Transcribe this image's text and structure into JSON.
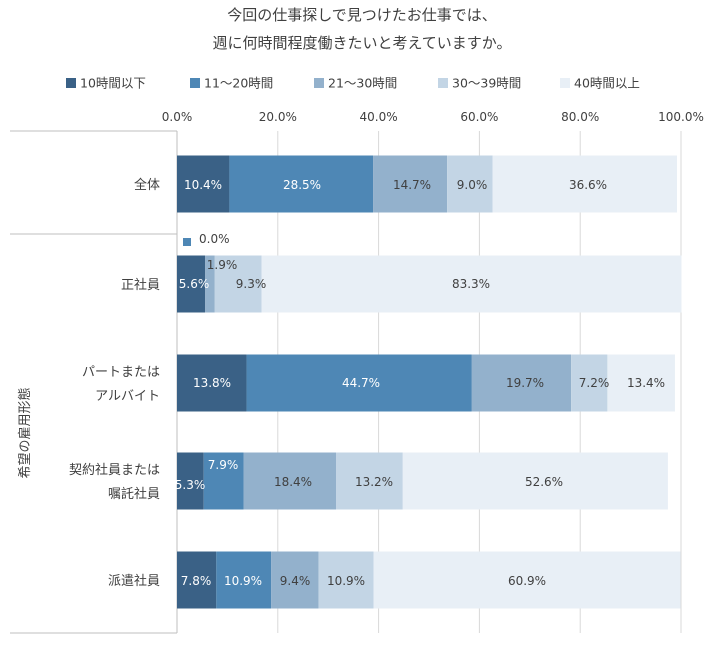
{
  "chart_data": {
    "type": "bar",
    "orientation": "horizontal",
    "stacked": true,
    "title": [
      "今回の仕事探しで見つけたお仕事では、",
      "週に何時間程度働きたいと考えていますか。"
    ],
    "ylabel": "希望の雇用形態",
    "xlim": [
      0,
      100
    ],
    "x_ticks": [
      "0.0%",
      "20.0%",
      "40.0%",
      "60.0%",
      "80.0%",
      "100.0%"
    ],
    "legend_position": "top",
    "grid": true,
    "categories": [
      [
        "全体"
      ],
      [
        "正社員"
      ],
      [
        "パートまたは",
        "アルバイト"
      ],
      [
        "契約社員または",
        "嘱託社員"
      ],
      [
        "派遣社員"
      ]
    ],
    "series": [
      {
        "name": "10時間以下",
        "color": "#3a6186",
        "values": [
          10.4,
          5.6,
          13.8,
          5.3,
          7.8
        ]
      },
      {
        "name": "11～20時間",
        "color": "#4e87b5",
        "values": [
          28.5,
          0.0,
          44.7,
          7.9,
          10.9
        ]
      },
      {
        "name": "21～30時間",
        "color": "#93b1cc",
        "values": [
          14.7,
          1.9,
          19.7,
          18.4,
          9.4
        ]
      },
      {
        "name": "30～39時間",
        "color": "#c3d5e5",
        "values": [
          9.0,
          9.3,
          7.2,
          13.2,
          10.9
        ]
      },
      {
        "name": "40時間以上",
        "color": "#e8eff6",
        "values": [
          36.6,
          83.3,
          13.4,
          52.6,
          60.9
        ]
      }
    ],
    "data_labels": [
      [
        "10.4%",
        "28.5%",
        "14.7%",
        "9.0%",
        "36.6%"
      ],
      [
        "5.6%",
        "0.0%",
        "1.9%",
        "9.3%",
        "83.3%"
      ],
      [
        "13.8%",
        "44.7%",
        "19.7%",
        "7.2%",
        "13.4%"
      ],
      [
        "5.3%",
        "7.9%",
        "18.4%",
        "13.2%",
        "52.6%"
      ],
      [
        "7.8%",
        "10.9%",
        "9.4%",
        "10.9%",
        "60.9%"
      ]
    ]
  }
}
